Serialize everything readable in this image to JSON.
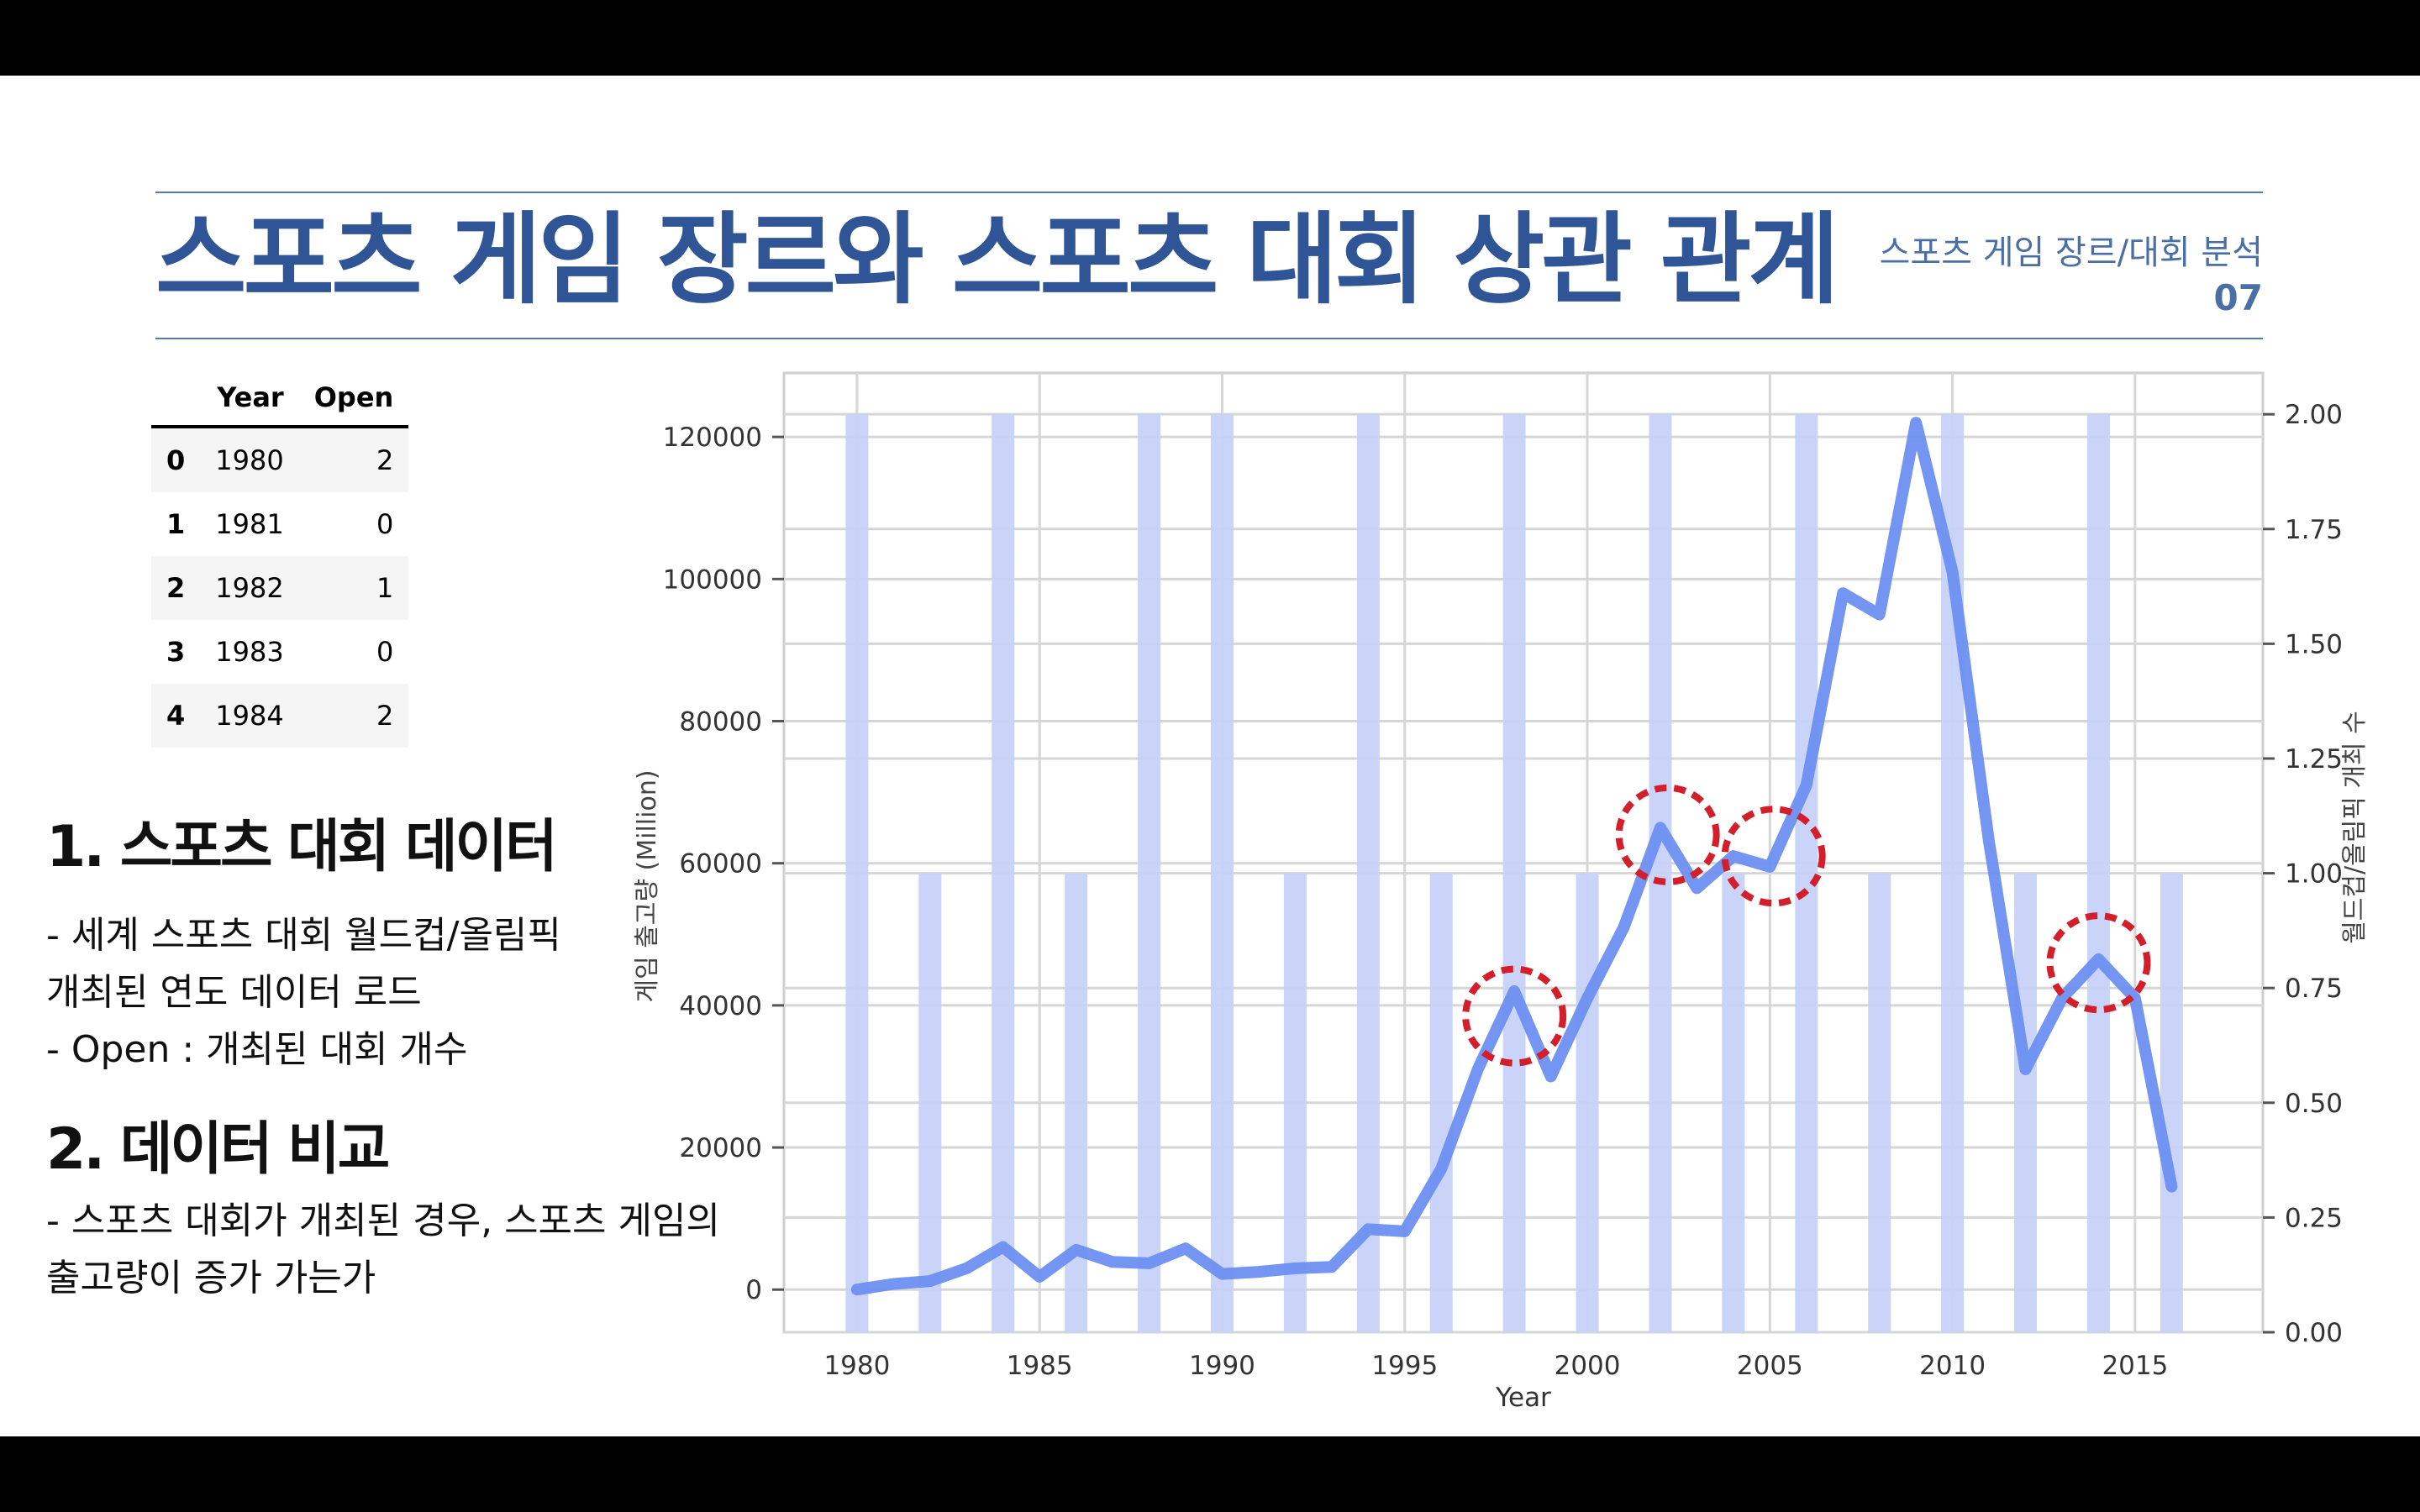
{
  "slide": {
    "title": "스포츠 게임 장르와 스포츠 대회 상관 관계",
    "subtitle": "스포츠 게임 장르/대회 분석",
    "page_number": "07",
    "accent_color": "#2f5597"
  },
  "table": {
    "columns": [
      "",
      "Year",
      "Open"
    ],
    "rows": [
      {
        "idx": "0",
        "year": "1980",
        "open": "2"
      },
      {
        "idx": "1",
        "year": "1981",
        "open": "0"
      },
      {
        "idx": "2",
        "year": "1982",
        "open": "1"
      },
      {
        "idx": "3",
        "year": "1983",
        "open": "0"
      },
      {
        "idx": "4",
        "year": "1984",
        "open": "2"
      }
    ]
  },
  "section1": {
    "heading": "1. 스포츠 대회 데이터",
    "lines": [
      "- 세계 스포츠 대회 월드컵/올림픽",
      "개최된 연도 데이터 로드",
      "- Open : 개최된 대회 개수"
    ]
  },
  "section2": {
    "heading": "2. 데이터 비교",
    "lines": [
      "- 스포츠 대회가 개최된 경우, 스포츠 게임의",
      "출고량이 증가 가는가"
    ]
  },
  "chart_data": {
    "type": "line",
    "xlabel": "Year",
    "ylabel": "게임 출고량 (Million)",
    "y2label": "월드컵/올림픽 개최 수",
    "xlim": [
      1978,
      2018.5
    ],
    "ylim": [
      -6000,
      129000
    ],
    "y2lim": [
      0,
      2.09
    ],
    "xticks": [
      "1980",
      "1985",
      "1990",
      "1995",
      "2000",
      "2005",
      "2010",
      "2015"
    ],
    "yticks": [
      "0",
      "20000",
      "40000",
      "60000",
      "80000",
      "100000",
      "120000"
    ],
    "y2ticks": [
      "0.00",
      "0.25",
      "0.50",
      "0.75",
      "1.00",
      "1.25",
      "1.50",
      "1.75",
      "2.00"
    ],
    "grid": true,
    "line_color": "#6d8ff0",
    "bar_color": "#c6d2f8",
    "highlight_color": "#d21f2b",
    "series": [
      {
        "axis": "left",
        "kind": "line",
        "x": [
          1980,
          1981,
          1982,
          1983,
          1984,
          1985,
          1986,
          1987,
          1988,
          1989,
          1990,
          1991,
          1992,
          1993,
          1994,
          1995,
          1996,
          1997,
          1998,
          1999,
          2000,
          2001,
          2002,
          2003,
          2004,
          2005,
          2006,
          2007,
          2008,
          2009,
          2010,
          2011,
          2012,
          2013,
          2014,
          2015,
          2016
        ],
        "values": [
          0,
          800,
          1200,
          3000,
          6000,
          1800,
          5600,
          3900,
          3700,
          5800,
          2200,
          2500,
          3000,
          3200,
          8500,
          8200,
          17000,
          31000,
          42000,
          30000,
          41000,
          51000,
          65000,
          56500,
          61000,
          59500,
          71000,
          98000,
          95000,
          122000,
          101000,
          63000,
          31000,
          41000,
          46500,
          41000,
          14500
        ]
      },
      {
        "axis": "right",
        "kind": "bar",
        "x": [
          1980,
          1981,
          1982,
          1983,
          1984,
          1985,
          1986,
          1987,
          1988,
          1989,
          1990,
          1991,
          1992,
          1993,
          1994,
          1995,
          1996,
          1997,
          1998,
          1999,
          2000,
          2001,
          2002,
          2003,
          2004,
          2005,
          2006,
          2007,
          2008,
          2009,
          2010,
          2011,
          2012,
          2013,
          2014,
          2015,
          2016
        ],
        "values": [
          2,
          0,
          1,
          0,
          2,
          0,
          1,
          0,
          2,
          0,
          2,
          0,
          1,
          0,
          2,
          0,
          1,
          0,
          2,
          0,
          1,
          0,
          2,
          0,
          1,
          0,
          2,
          0,
          1,
          0,
          2,
          0,
          1,
          0,
          2,
          0,
          1
        ]
      }
    ],
    "highlights": [
      {
        "x": 1998,
        "y": 38500
      },
      {
        "x": 2002.2,
        "y": 64000
      },
      {
        "x": 2005.1,
        "y": 61000
      },
      {
        "x": 2014,
        "y": 46000
      }
    ]
  }
}
